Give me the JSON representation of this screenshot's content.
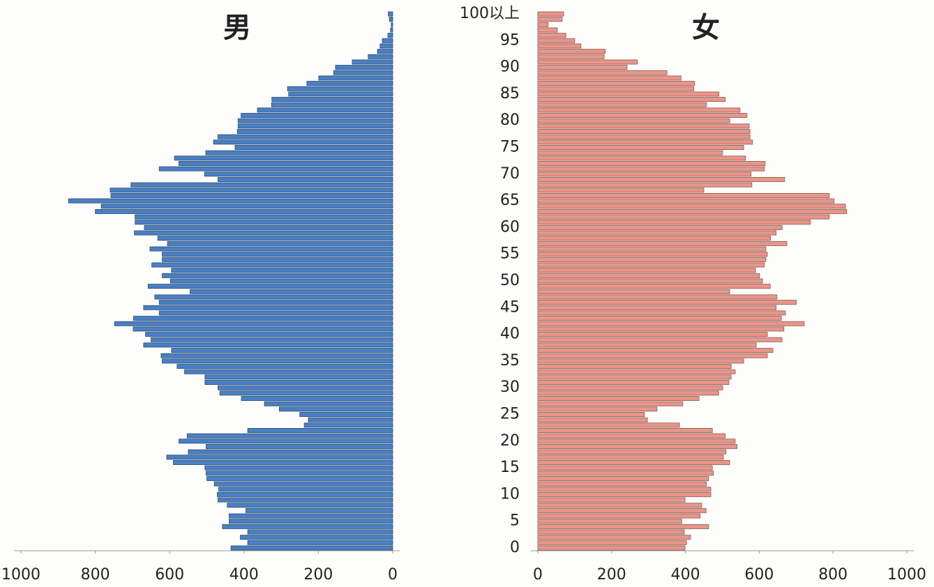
{
  "chart_data": {
    "type": "pyramid",
    "categories": [
      "0",
      null,
      null,
      null,
      null,
      "5",
      null,
      null,
      null,
      null,
      "10",
      null,
      null,
      null,
      null,
      "15",
      null,
      null,
      null,
      null,
      "20",
      null,
      null,
      null,
      null,
      "25",
      null,
      null,
      null,
      null,
      "30",
      null,
      null,
      null,
      null,
      "35",
      null,
      null,
      null,
      null,
      "40",
      null,
      null,
      null,
      null,
      "45",
      null,
      null,
      null,
      null,
      "50",
      null,
      null,
      null,
      null,
      "55",
      null,
      null,
      null,
      null,
      "60",
      null,
      null,
      null,
      null,
      "65",
      null,
      null,
      null,
      null,
      "70",
      null,
      null,
      null,
      null,
      "75",
      null,
      null,
      null,
      null,
      "80",
      null,
      null,
      null,
      null,
      "85",
      null,
      null,
      null,
      null,
      "90",
      null,
      null,
      null,
      null,
      "95",
      null,
      null,
      null,
      null,
      "100以上"
    ],
    "series": [
      {
        "name": "男",
        "color": "#4a7fc1",
        "side": "left",
        "values": [
          435,
          390,
          410,
          390,
          458,
          440,
          440,
          395,
          445,
          470,
          472,
          468,
          480,
          500,
          502,
          505,
          590,
          608,
          550,
          502,
          575,
          553,
          390,
          238,
          227,
          250,
          305,
          345,
          407,
          465,
          470,
          505,
          505,
          560,
          580,
          620,
          623,
          595,
          670,
          650,
          665,
          698,
          748,
          697,
          628,
          670,
          628,
          640,
          545,
          658,
          598,
          620,
          595,
          648,
          620,
          620,
          653,
          606,
          632,
          695,
          668,
          693,
          693,
          800,
          784,
          872,
          758,
          760,
          704,
          470,
          506,
          628,
          575,
          587,
          503,
          424,
          482,
          470,
          418,
          416,
          416,
          408,
          364,
          326,
          325,
          280,
          283,
          231,
          199,
          159,
          154,
          109,
          66,
          41,
          34,
          28,
          13,
          6,
          4,
          9,
          12
        ]
      },
      {
        "name": "女",
        "color": "#e8958a",
        "side": "right",
        "values": [
          399,
          403,
          414,
          397,
          463,
          390,
          440,
          456,
          444,
          399,
          469,
          469,
          457,
          463,
          476,
          473,
          520,
          503,
          510,
          540,
          535,
          508,
          473,
          384,
          297,
          289,
          323,
          393,
          437,
          490,
          501,
          518,
          524,
          535,
          524,
          558,
          622,
          637,
          592,
          662,
          622,
          667,
          722,
          660,
          671,
          646,
          701,
          648,
          520,
          630,
          609,
          601,
          590,
          614,
          618,
          622,
          618,
          675,
          631,
          646,
          662,
          739,
          790,
          837,
          834,
          803,
          790,
          450,
          580,
          669,
          578,
          614,
          616,
          563,
          501,
          558,
          582,
          575,
          575,
          573,
          520,
          567,
          548,
          457,
          508,
          491,
          423,
          425,
          388,
          350,
          242,
          270,
          180,
          183,
          117,
          100,
          76,
          53,
          28,
          66,
          70
        ]
      }
    ],
    "xlim": [
      0,
      1000
    ],
    "xticks": [
      0,
      200,
      400,
      600,
      800,
      1000
    ]
  }
}
